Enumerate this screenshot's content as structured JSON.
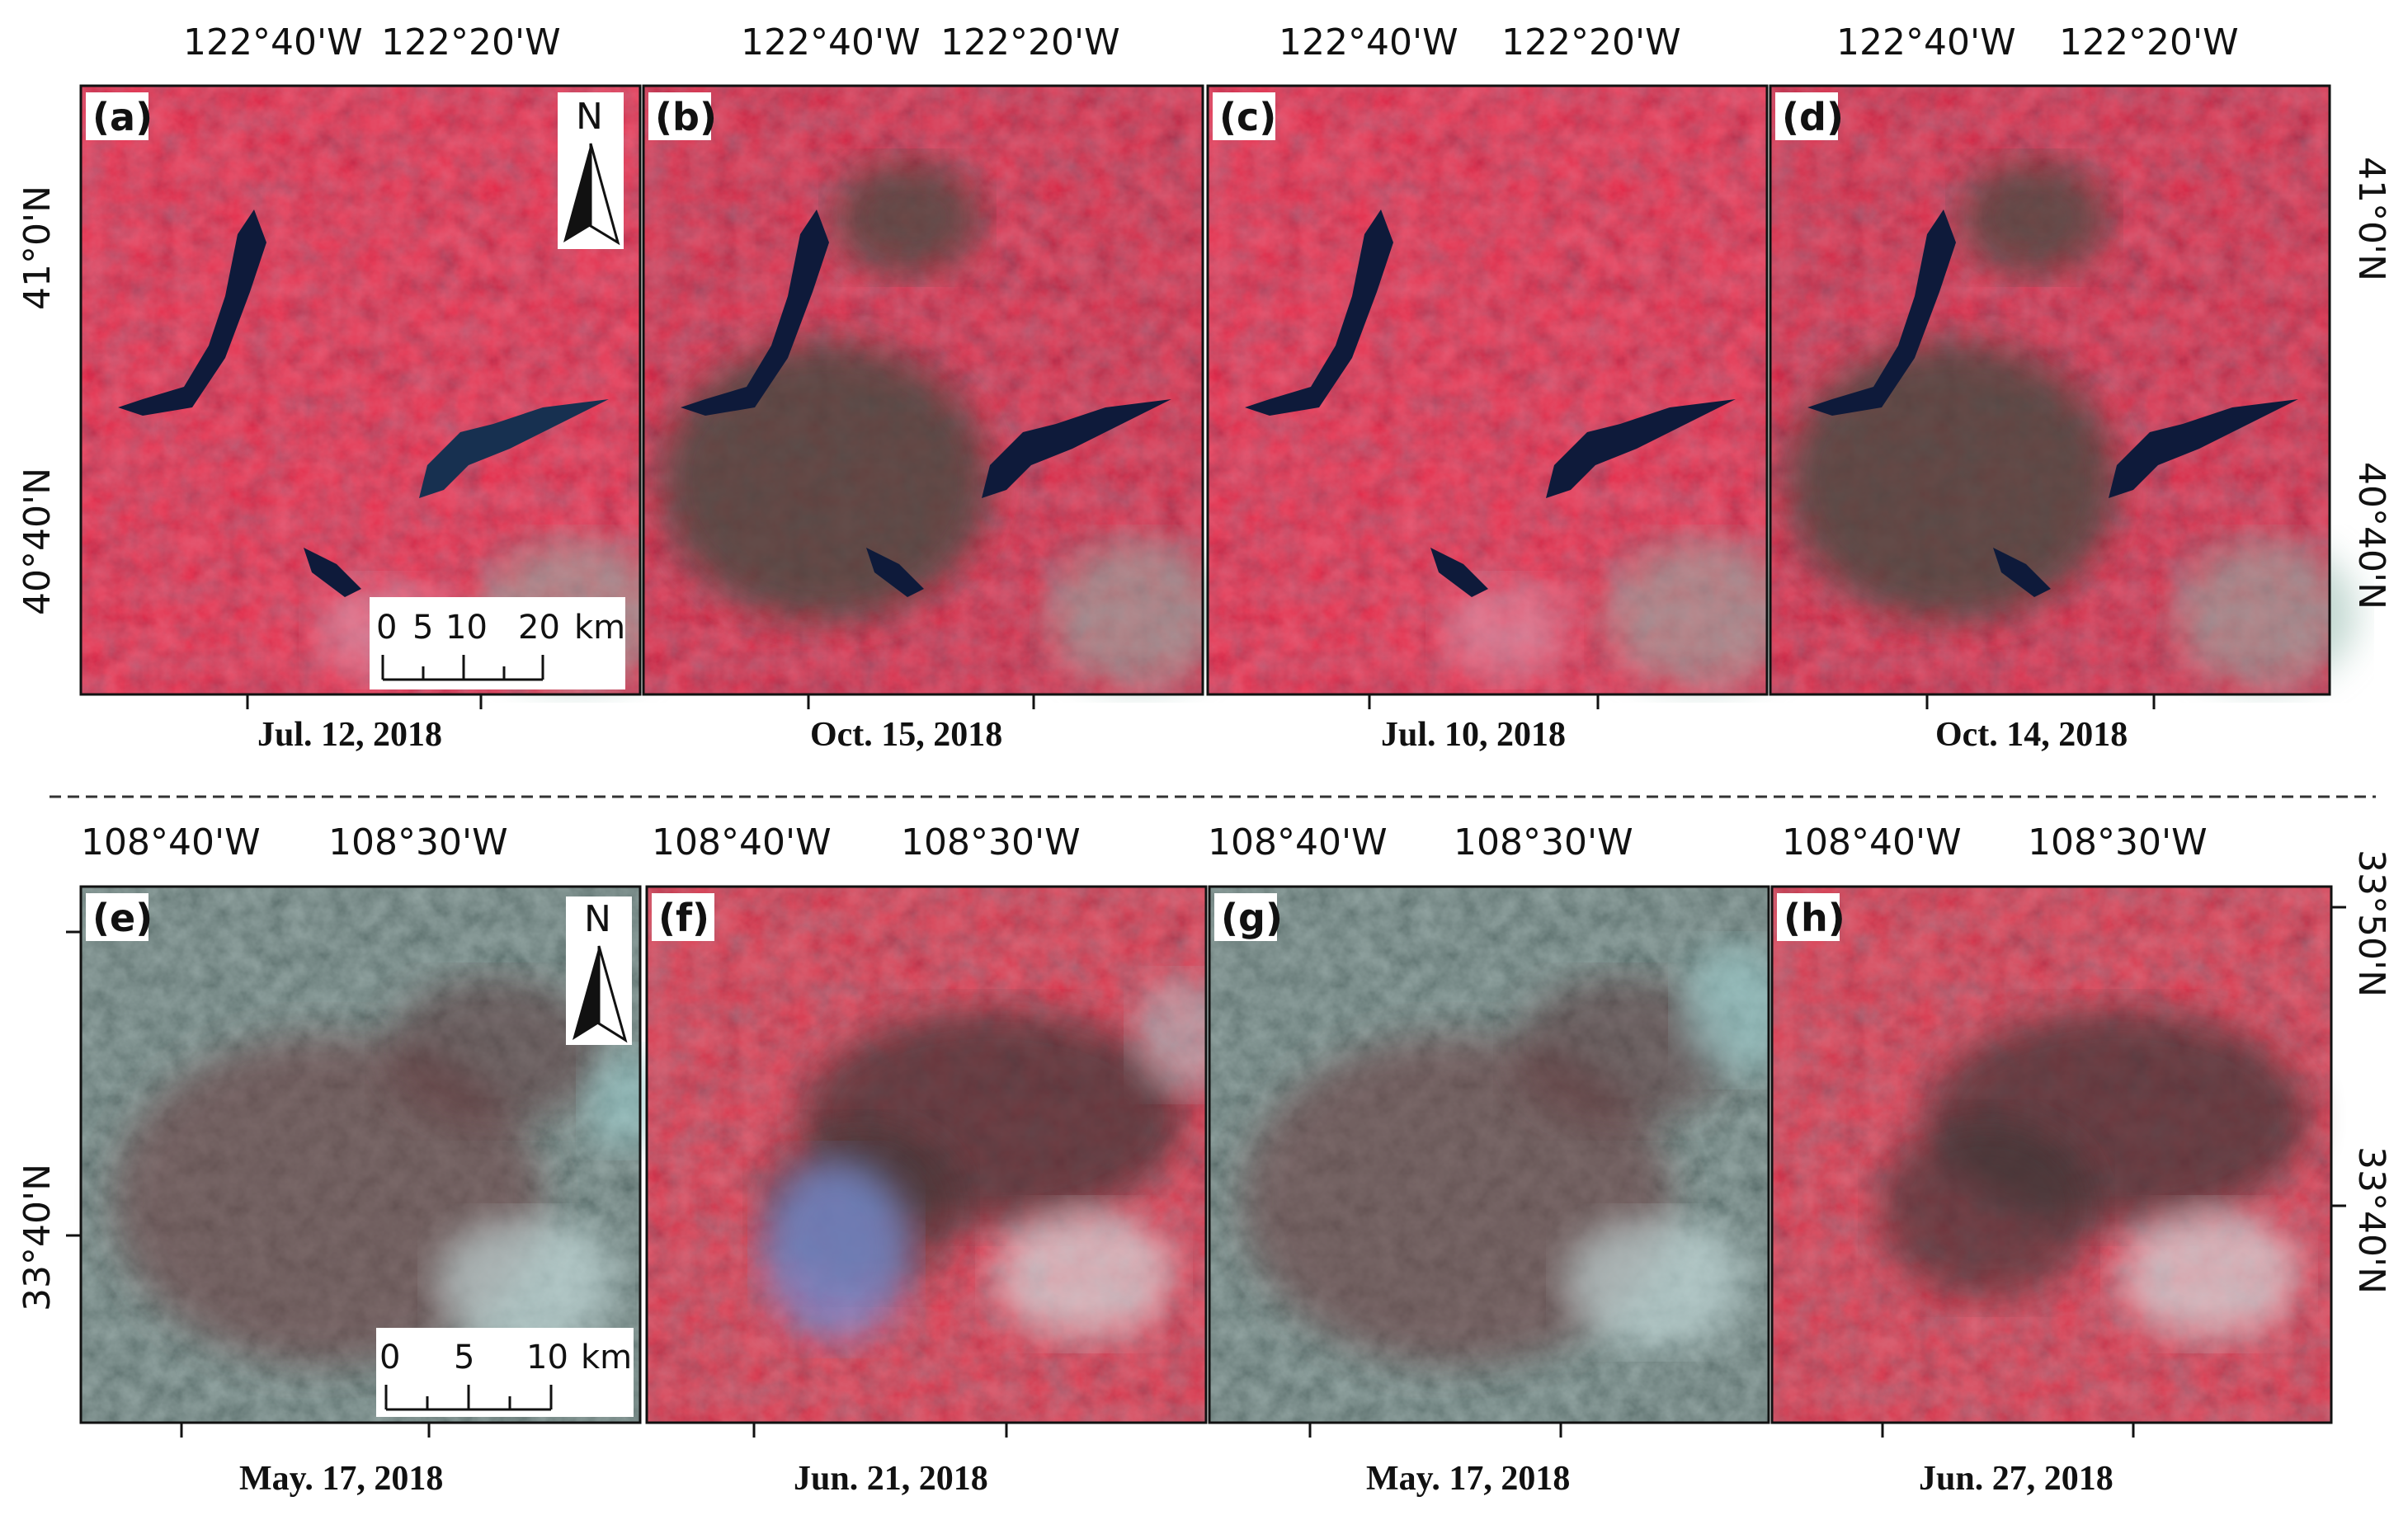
{
  "top_row": {
    "lon_labels": [
      "122°40'W",
      "122°20'W"
    ],
    "lat_labels": [
      "41°0'N",
      "40°40'N"
    ],
    "panels": [
      {
        "label": "(a)",
        "date": "Jul. 12, 2018"
      },
      {
        "label": "(b)",
        "date": "Oct. 15, 2018"
      },
      {
        "label": "(c)",
        "date": "Jul. 10, 2018"
      },
      {
        "label": "(d)",
        "date": "Oct. 14, 2018"
      }
    ],
    "scale_bar": {
      "ticks": [
        "0",
        "5",
        "10",
        "20"
      ],
      "unit": "km"
    }
  },
  "bottom_row": {
    "lon_labels": [
      "108°40'W",
      "108°30'W"
    ],
    "lat_labels": [
      "33°50'N",
      "33°40'N"
    ],
    "panels": [
      {
        "label": "(e)",
        "date": "May. 17, 2018"
      },
      {
        "label": "(f)",
        "date": "Jun. 21, 2018"
      },
      {
        "label": "(g)",
        "date": "May. 17, 2018"
      },
      {
        "label": "(h)",
        "date": "Jun. 27, 2018"
      }
    ],
    "scale_bar": {
      "ticks": [
        "0",
        "5",
        "10"
      ],
      "unit": "km"
    }
  },
  "north_arrow": "N",
  "colors": {
    "vegetation_red": "#c8203c",
    "burned_dark": "#3a3f36",
    "water": "#0e1a3a",
    "bare_cyan": "#7fb3b0",
    "smoke_blue": "#6e8fd6"
  }
}
